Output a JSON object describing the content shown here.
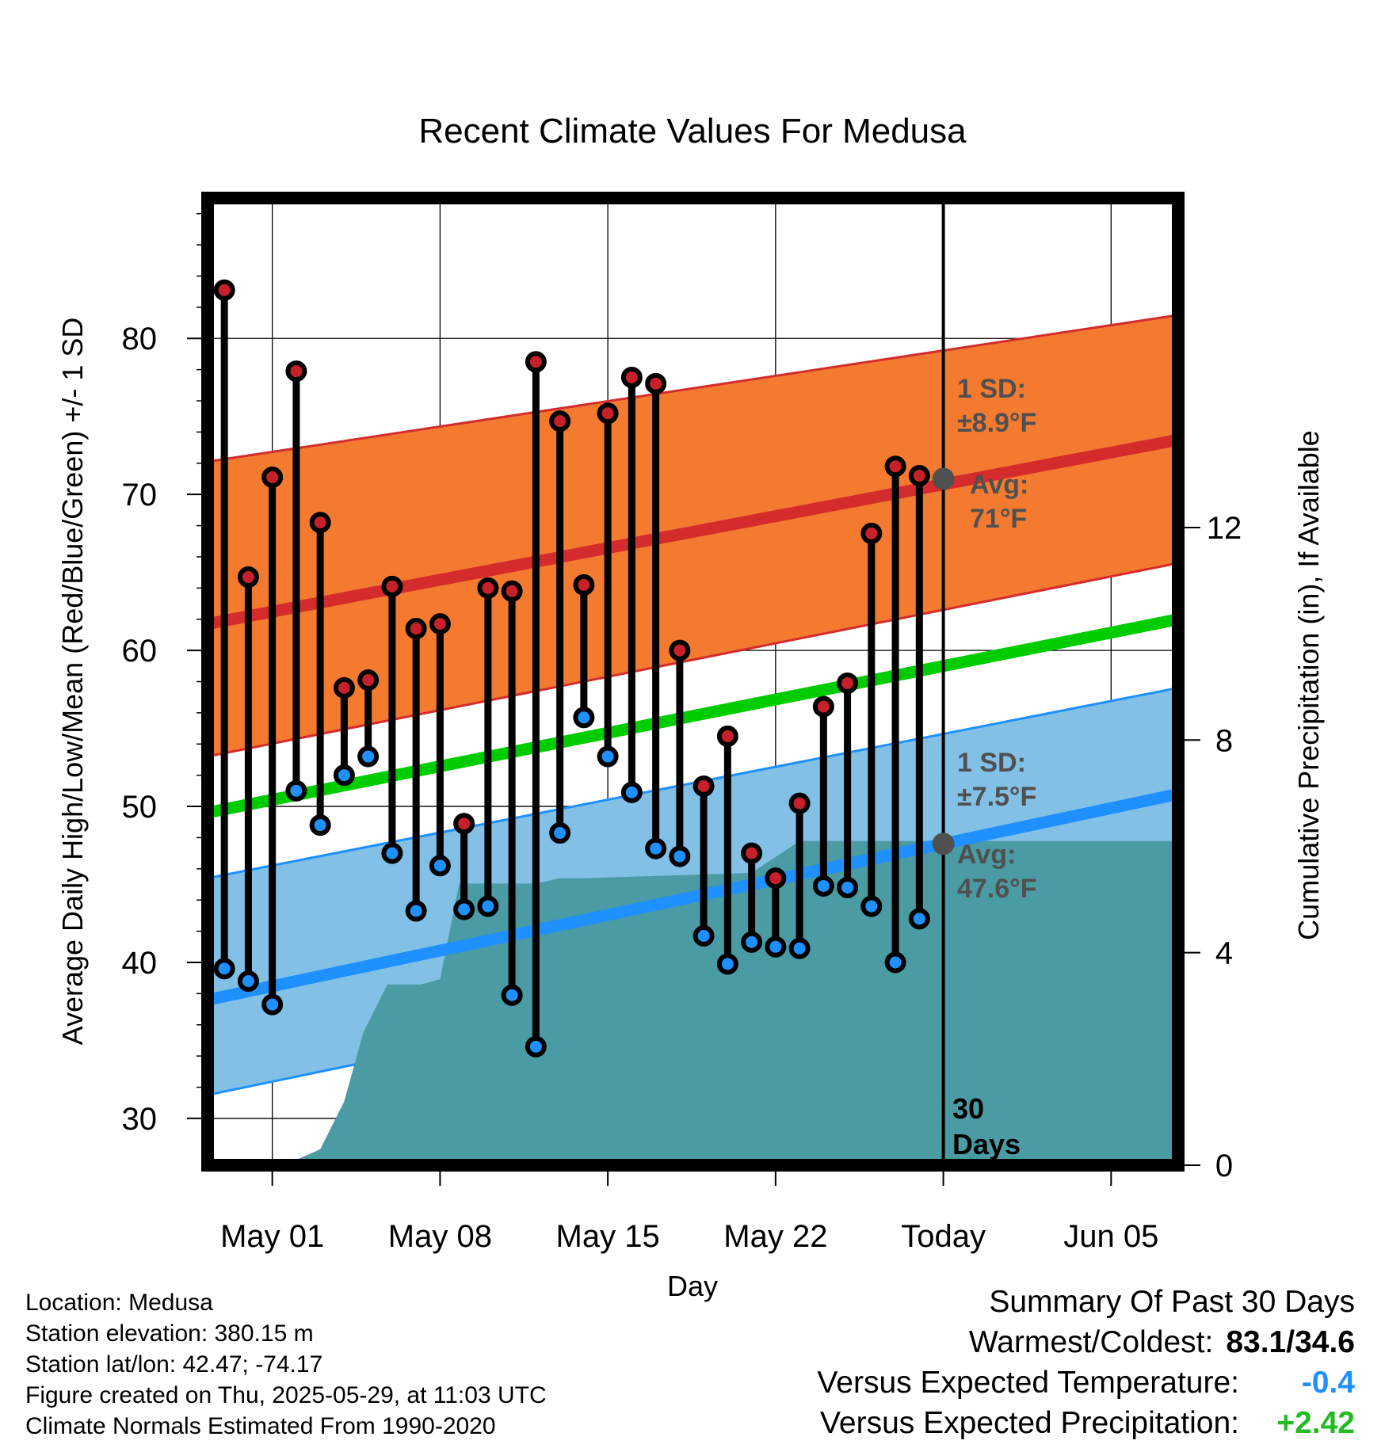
{
  "chart_data": {
    "type": "line",
    "title": "Recent Climate Values For Medusa",
    "xlabel": "Day",
    "ylabel": "Average Daily High/Low/Mean (Red/Blue/Green) +/- 1 SD",
    "y2label": "Cumulative Precipitation (in), If Available",
    "x_tick_labels": [
      "May 01",
      "May 08",
      "May 15",
      "May 22",
      "Today",
      "Jun 05"
    ],
    "x_tick_days": [
      2,
      9,
      16,
      23,
      30,
      37
    ],
    "xlim": [
      -0.7,
      39.8
    ],
    "ylim": [
      27,
      89
    ],
    "y_ticks": [
      30,
      40,
      50,
      60,
      70,
      80
    ],
    "y2lim": [
      0,
      18.2
    ],
    "y2_ticks": [
      0,
      4,
      8,
      12
    ],
    "grid": true,
    "today_day": 30,
    "days": [
      0,
      1,
      2,
      3,
      4,
      5,
      6,
      7,
      8,
      9,
      10,
      11,
      12,
      13,
      14,
      15,
      16,
      17,
      18,
      19,
      20,
      21,
      22,
      23,
      24,
      25,
      26,
      27,
      28,
      29
    ],
    "series": [
      {
        "name": "High",
        "color": "#c8202a",
        "values": [
          83.1,
          64.7,
          71.1,
          77.9,
          68.2,
          57.6,
          58.1,
          64.1,
          61.4,
          61.7,
          48.9,
          64.0,
          63.8,
          78.5,
          74.7,
          64.2,
          75.2,
          77.5,
          77.1,
          60.0,
          51.3,
          54.5,
          47.0,
          45.4,
          50.2,
          56.4,
          57.9,
          67.5,
          71.8,
          71.2
        ]
      },
      {
        "name": "Low",
        "color": "#1e90ff",
        "values": [
          39.6,
          38.8,
          37.3,
          51.0,
          48.8,
          52.0,
          53.2,
          47.0,
          43.3,
          46.2,
          43.4,
          43.6,
          37.9,
          34.6,
          48.3,
          55.7,
          53.2,
          50.9,
          47.3,
          46.8,
          41.7,
          39.9,
          41.3,
          41.0,
          40.9,
          44.9,
          44.8,
          43.6,
          40.0,
          42.8
        ]
      }
    ],
    "normals": {
      "day_range": [
        -0.7,
        39.8
      ],
      "high_avg": [
        61.7,
        73.5
      ],
      "high_sd_lower": [
        53.2,
        65.6
      ],
      "high_sd_upper": [
        72.1,
        81.5
      ],
      "mean_avg": [
        49.6,
        62.0
      ],
      "low_avg": [
        37.6,
        50.8
      ],
      "low_sd_lower": [
        31.5,
        44.4
      ],
      "low_sd_upper": [
        45.4,
        57.6
      ]
    },
    "precip": {
      "days": [
        -0.7,
        2,
        3,
        4,
        5,
        5.8,
        6.8,
        8,
        8.2,
        9,
        9.8,
        11,
        12,
        13,
        14,
        15,
        22,
        24,
        26,
        39.8
      ],
      "values": [
        0.0,
        0.0,
        0.1,
        0.3,
        1.2,
        2.5,
        3.4,
        3.4,
        3.4,
        3.5,
        5.3,
        5.3,
        5.3,
        5.3,
        5.4,
        5.4,
        5.5,
        6.1,
        6.1,
        6.1
      ],
      "color": "#4a9ba3"
    },
    "annotations": {
      "high_sd_1": "1 SD:",
      "high_sd_2": "±8.9°F",
      "high_avg_1": "Avg:",
      "high_avg_2": "71°F",
      "low_sd_1": "1 SD:",
      "low_sd_2": "±7.5°F",
      "low_avg_1": "Avg:",
      "low_avg_2": "47.6°F",
      "today_high_avg": 71,
      "today_low_avg": 47.6,
      "window_1": "30",
      "window_2": "Days"
    },
    "colors": {
      "high_band": "#f47a30",
      "high_line": "#d42c2c",
      "high_edge": "#d42c2c",
      "mean_line": "#00cc00",
      "low_band": "#82c0e6",
      "low_line": "#1e90ff",
      "low_edge": "#1e90ff",
      "precip_fill": "#4a9ba3",
      "high_dot": "#c8202a",
      "low_dot": "#1e90ff"
    }
  },
  "info": {
    "location": "Location: Medusa",
    "elevation": "Station elevation: 380.15 m",
    "latlon": "Station lat/lon: 42.47; -74.17",
    "created": "Figure created on Thu, 2025-05-29, at 11:03 UTC",
    "normals": "Climate Normals Estimated From 1990-2020"
  },
  "summary": {
    "heading": "Summary Of Past 30 Days",
    "warm_cold_label": "Warmest/Coldest:",
    "warm_cold_value": "83.1/34.6",
    "temp_label": "Versus Expected Temperature:",
    "temp_value": "-0.4",
    "temp_color": "#1e90ff",
    "precip_label": "Versus Expected Precipitation:",
    "precip_value": "+2.42",
    "precip_color": "#22bb22"
  }
}
